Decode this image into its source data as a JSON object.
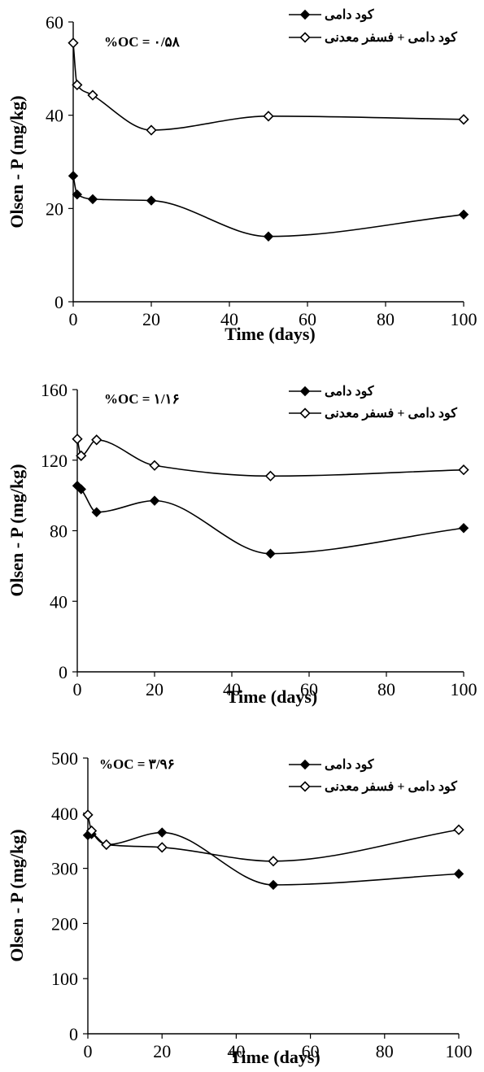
{
  "chart_data": [
    {
      "type": "line",
      "annotation": "%OC = ۰/۵۸",
      "xlabel": "Time (days)",
      "ylabel": "Olsen - P (mg/kg)",
      "xlim": [
        0,
        100
      ],
      "ylim": [
        0,
        60
      ],
      "xticks": [
        0,
        20,
        40,
        60,
        80,
        100
      ],
      "yticks": [
        0,
        20,
        40,
        60
      ],
      "legend_position": "top-right",
      "series": [
        {
          "name": "کود دامی",
          "marker": "filled-diamond",
          "points": [
            [
              0,
              27
            ],
            [
              1,
              23
            ],
            [
              5,
              22
            ],
            [
              20,
              21.7
            ],
            [
              50,
              14
            ],
            [
              100,
              18.7
            ]
          ]
        },
        {
          "name": "کود دامی + فسفر معدنی",
          "marker": "open-diamond",
          "points": [
            [
              0,
              55.5
            ],
            [
              1,
              46.5
            ],
            [
              5,
              44.3
            ],
            [
              20,
              36.8
            ],
            [
              50,
              39.8
            ],
            [
              100,
              39.1
            ]
          ]
        }
      ]
    },
    {
      "type": "line",
      "annotation": "%OC = ۱/۱۶",
      "xlabel": "Time (days)",
      "ylabel": "Olsen - P (mg/kg)",
      "xlim": [
        0,
        100
      ],
      "ylim": [
        0,
        160
      ],
      "xticks": [
        0,
        20,
        40,
        60,
        80,
        100
      ],
      "yticks": [
        0,
        40,
        80,
        120,
        160
      ],
      "legend_position": "top-right",
      "series": [
        {
          "name": "کود دامی",
          "marker": "filled-diamond",
          "points": [
            [
              0,
              105.5
            ],
            [
              1,
              103.5
            ],
            [
              5,
              90.5
            ],
            [
              20,
              97
            ],
            [
              50,
              67
            ],
            [
              100,
              81.5
            ]
          ]
        },
        {
          "name": "کود دامی + فسفر معدنی",
          "marker": "open-diamond",
          "points": [
            [
              0,
              132
            ],
            [
              1,
              122.5
            ],
            [
              5,
              131.5
            ],
            [
              20,
              117
            ],
            [
              50,
              111
            ],
            [
              100,
              114.5
            ]
          ]
        }
      ]
    },
    {
      "type": "line",
      "annotation": "%OC = ۳/۹۶",
      "xlabel": "Time (days)",
      "ylabel": "Olsen - P (mg/kg)",
      "xlim": [
        0,
        100
      ],
      "ylim": [
        0,
        500
      ],
      "xticks": [
        0,
        20,
        40,
        60,
        80,
        100
      ],
      "yticks": [
        0,
        100,
        200,
        300,
        400,
        500
      ],
      "legend_position": "top-right",
      "series": [
        {
          "name": "کود دامی",
          "marker": "filled-diamond",
          "points": [
            [
              0,
              360
            ],
            [
              1,
              362
            ],
            [
              5,
              343
            ],
            [
              20,
              365
            ],
            [
              50,
              270
            ],
            [
              100,
              290
            ]
          ]
        },
        {
          "name": "کود دامی + فسفر معدنی",
          "marker": "open-diamond",
          "points": [
            [
              0,
              397
            ],
            [
              1,
              368
            ],
            [
              5,
              343
            ],
            [
              20,
              338
            ],
            [
              50,
              313
            ],
            [
              100,
              370
            ]
          ]
        }
      ]
    }
  ]
}
